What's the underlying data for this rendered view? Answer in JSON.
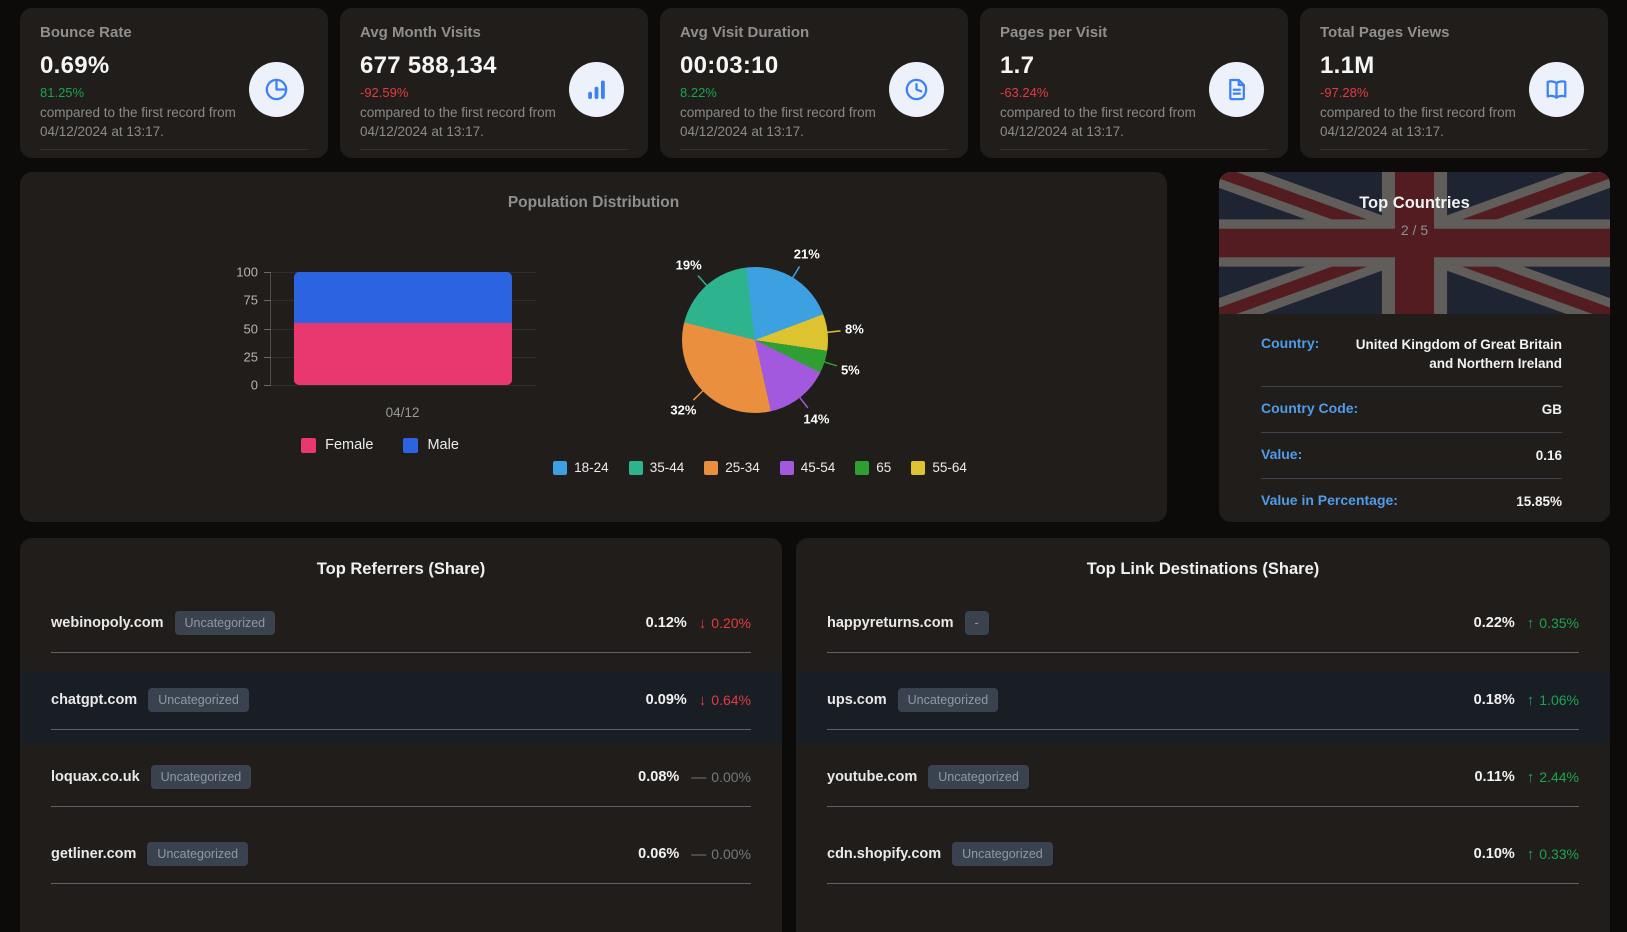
{
  "colors": {
    "page_bg": "#0c0b0a",
    "card_bg": "#201d1a",
    "green": "#16a44e",
    "red": "#e23b41",
    "gray": "#73787f",
    "label_blue": "#4f9ce8",
    "icon_blue": "#3c82f4"
  },
  "stat_cards": [
    {
      "name": "bounce-rate",
      "title": "Bounce Rate",
      "value": "0.69%",
      "change": "81.25%",
      "change_dir": "up",
      "icon": "pie-chart-icon",
      "description": "compared to the first record from 04/12/2024 at 13:17."
    },
    {
      "name": "avg-month-visits",
      "title": "Avg Month Visits",
      "value": "677 588,134",
      "change": "-92.59%",
      "change_dir": "down",
      "icon": "bar-chart-icon",
      "description": "compared to the first record from 04/12/2024 at 13:17."
    },
    {
      "name": "avg-visit-duration",
      "title": "Avg Visit Duration",
      "value": "00:03:10",
      "change": "8.22%",
      "change_dir": "up",
      "icon": "clock-icon",
      "description": "compared to the first record from 04/12/2024 at 13:17."
    },
    {
      "name": "pages-per-visit",
      "title": "Pages per Visit",
      "value": "1.7",
      "change": "-63.24%",
      "change_dir": "down",
      "icon": "document-icon",
      "description": "compared to the first record from 04/12/2024 at 13:17."
    },
    {
      "name": "total-pages-views",
      "title": "Total Pages Views",
      "value": "1.1M",
      "change": "-97.28%",
      "change_dir": "down",
      "icon": "book-icon",
      "description": "compared to the first record from 04/12/2024 at 13:17."
    }
  ],
  "population_card": {
    "title": "Population Distribution"
  },
  "chart_data": [
    {
      "type": "bar",
      "stacked": true,
      "title": "Population Distribution",
      "categories": [
        "04/12"
      ],
      "series": [
        {
          "name": "Female",
          "values": [
            55
          ],
          "color": "#e8386f"
        },
        {
          "name": "Male",
          "values": [
            45
          ],
          "color": "#2b63e0"
        }
      ],
      "ylim": [
        0,
        100
      ],
      "yticks": [
        0,
        25,
        50,
        75,
        100
      ],
      "xlabel": "",
      "ylabel": "",
      "grid": true,
      "legend_position": "bottom"
    },
    {
      "type": "pie",
      "start_angle_deg": -7,
      "labels": "percent",
      "legend_position": "bottom",
      "slices": [
        {
          "label": "18-24",
          "value": 21,
          "label_text": "21%",
          "color": "#3da0e0"
        },
        {
          "label": "55-64",
          "value": 8,
          "label_text": "8%",
          "color": "#ddc32f"
        },
        {
          "label": "65",
          "value": 5,
          "label_text": "5%",
          "color": "#2f9e33"
        },
        {
          "label": "45-54",
          "value": 14,
          "label_text": "14%",
          "color": "#a259dd"
        },
        {
          "label": "25-34",
          "value": 32,
          "label_text": "32%",
          "color": "#e98f3e"
        },
        {
          "label": "35-44",
          "value": 19,
          "label_text": "19%",
          "color": "#2db38e"
        }
      ],
      "legend": [
        {
          "label": "18-24",
          "color": "#3da0e0"
        },
        {
          "label": "35-44",
          "color": "#2db38e"
        },
        {
          "label": "25-34",
          "color": "#e98f3e"
        },
        {
          "label": "45-54",
          "color": "#a259dd"
        },
        {
          "label": "65",
          "color": "#2f9e33"
        },
        {
          "label": "55-64",
          "color": "#ddc32f"
        }
      ]
    }
  ],
  "top_countries": {
    "title": "Top Countries",
    "pagination": "2 / 5",
    "flag": "united-kingdom",
    "rows": [
      {
        "label": "Country:",
        "value": "United Kingdom of Great Britain and Northern Ireland"
      },
      {
        "label": "Country Code:",
        "value": "GB"
      },
      {
        "label": "Value:",
        "value": "0.16"
      },
      {
        "label": "Value in Percentage:",
        "value": "15.85%"
      }
    ]
  },
  "referrers": {
    "title": "Top Referrers (Share)",
    "rows": [
      {
        "domain": "webinopoly.com",
        "badge": "Uncategorized",
        "share": "0.12%",
        "change": "0.20%",
        "dir": "down",
        "highlight": false
      },
      {
        "domain": "chatgpt.com",
        "badge": "Uncategorized",
        "share": "0.09%",
        "change": "0.64%",
        "dir": "down",
        "highlight": true
      },
      {
        "domain": "loquax.co.uk",
        "badge": "Uncategorized",
        "share": "0.08%",
        "change": "0.00%",
        "dir": "flat",
        "highlight": false
      },
      {
        "domain": "getliner.com",
        "badge": "Uncategorized",
        "share": "0.06%",
        "change": "0.00%",
        "dir": "flat",
        "highlight": false
      }
    ]
  },
  "destinations": {
    "title": "Top Link Destinations (Share)",
    "rows": [
      {
        "domain": "happyreturns.com",
        "badge": "-",
        "share": "0.22%",
        "change": "0.35%",
        "dir": "up",
        "highlight": false
      },
      {
        "domain": "ups.com",
        "badge": "Uncategorized",
        "share": "0.18%",
        "change": "1.06%",
        "dir": "up",
        "highlight": true
      },
      {
        "domain": "youtube.com",
        "badge": "Uncategorized",
        "share": "0.11%",
        "change": "2.44%",
        "dir": "up",
        "highlight": false
      },
      {
        "domain": "cdn.shopify.com",
        "badge": "Uncategorized",
        "share": "0.10%",
        "change": "0.33%",
        "dir": "up",
        "highlight": false
      }
    ]
  }
}
